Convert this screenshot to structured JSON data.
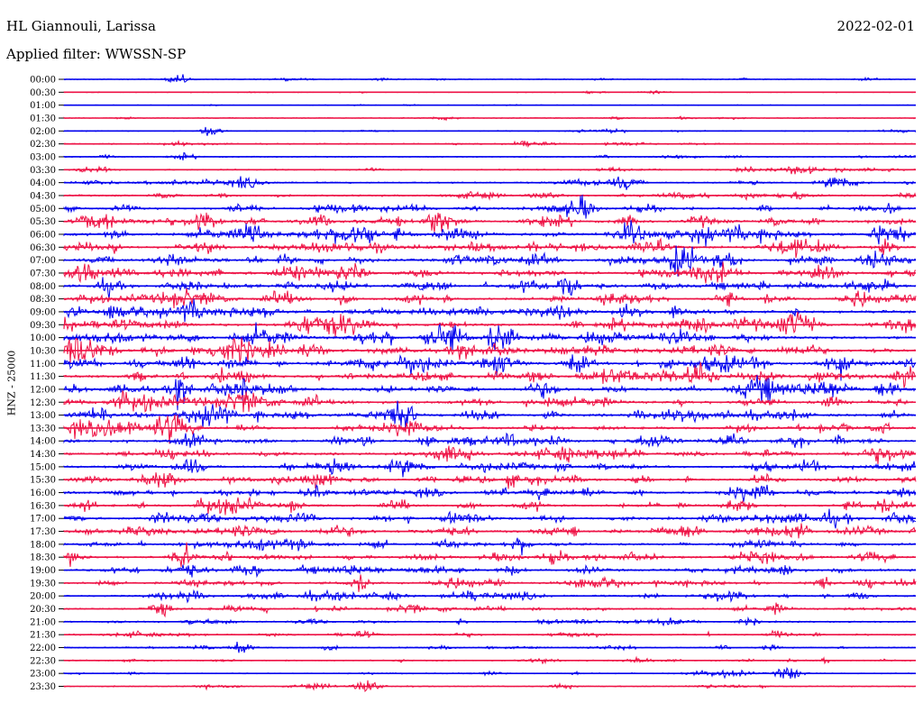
{
  "header": {
    "station": "HL Giannouli, Larissa",
    "date": "2022-02-01",
    "filter_label": "Applied filter: WWSSN-SP"
  },
  "chart_data": {
    "type": "line",
    "title": "HL Giannouli, Larissa",
    "subtitle": "Applied filter: WWSSN-SP",
    "date": "2022-02-01",
    "ylabel": "HNZ - 25000",
    "xlabel": "",
    "grid": false,
    "legend": "none",
    "row_labels": [
      "00:00",
      "00:30",
      "01:00",
      "01:30",
      "02:00",
      "02:30",
      "03:00",
      "03:30",
      "04:00",
      "04:30",
      "05:00",
      "05:30",
      "06:00",
      "06:30",
      "07:00",
      "07:30",
      "08:00",
      "08:30",
      "09:00",
      "09:30",
      "10:00",
      "10:30",
      "11:00",
      "11:30",
      "12:00",
      "12:30",
      "13:00",
      "13:30",
      "14:00",
      "14:30",
      "15:00",
      "15:30",
      "16:00",
      "16:30",
      "17:00",
      "17:30",
      "18:00",
      "18:30",
      "19:00",
      "19:30",
      "20:00",
      "20:30",
      "21:00",
      "21:30",
      "22:00",
      "22:30",
      "23:00",
      "23:30"
    ],
    "series_colors": [
      "#0000ee",
      "#ee1144"
    ],
    "activity": [
      0.1,
      0.06,
      0.04,
      0.08,
      0.12,
      0.22,
      0.18,
      0.3,
      0.4,
      0.45,
      0.55,
      0.8,
      1.0,
      0.9,
      0.85,
      0.85,
      0.8,
      0.75,
      0.85,
      0.85,
      0.9,
      0.95,
      1.0,
      0.9,
      0.9,
      0.85,
      0.85,
      0.8,
      0.8,
      0.75,
      0.7,
      0.7,
      0.7,
      0.75,
      0.75,
      0.75,
      0.65,
      0.7,
      0.7,
      0.65,
      0.55,
      0.5,
      0.35,
      0.3,
      0.25,
      0.25,
      0.2,
      0.18
    ]
  }
}
